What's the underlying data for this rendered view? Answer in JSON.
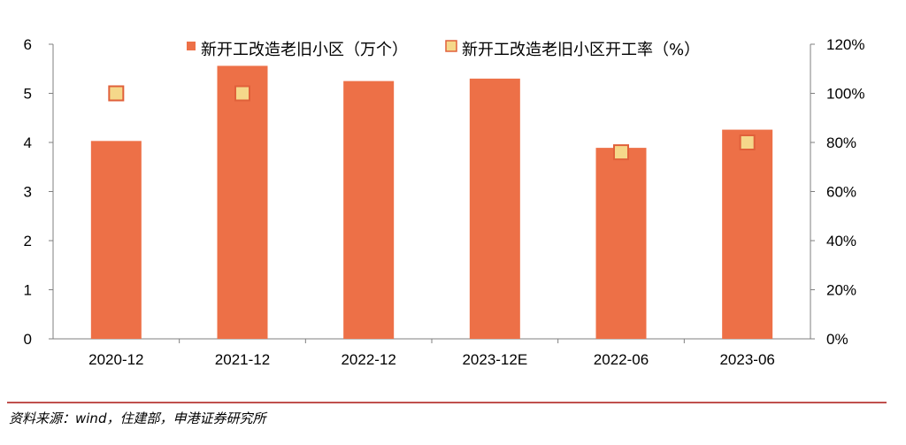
{
  "chart_data": {
    "type": "bar",
    "categories": [
      "2020-12",
      "2021-12",
      "2022-12",
      "2023-12E",
      "2022-06",
      "2023-06"
    ],
    "series": [
      {
        "name": "新开工改造老旧小区（万个）",
        "type": "bar",
        "axis": "left",
        "color": "#ed7047",
        "values": [
          4.03,
          5.56,
          5.25,
          5.3,
          3.89,
          4.26
        ]
      },
      {
        "name": "新开工改造老旧小区开工率（%）",
        "type": "scatter",
        "axis": "right",
        "color": "#f5d88a",
        "edge_color": "#e0603a",
        "values": [
          100,
          100,
          null,
          null,
          76,
          80
        ]
      }
    ],
    "left_axis": {
      "ylim": [
        0,
        6
      ],
      "ticks": [
        "0",
        "1",
        "2",
        "3",
        "4",
        "5",
        "6"
      ]
    },
    "right_axis": {
      "ylim": [
        0,
        120
      ],
      "ticks": [
        "0%",
        "20%",
        "40%",
        "60%",
        "80%",
        "100%",
        "120%"
      ]
    },
    "grid": false,
    "legend_position": "top"
  },
  "legend": {
    "bar_label": "新开工改造老旧小区（万个）",
    "marker_label": "新开工改造老旧小区开工率（%）"
  },
  "source": "资料来源：wind，住建部，申港证券研究所"
}
